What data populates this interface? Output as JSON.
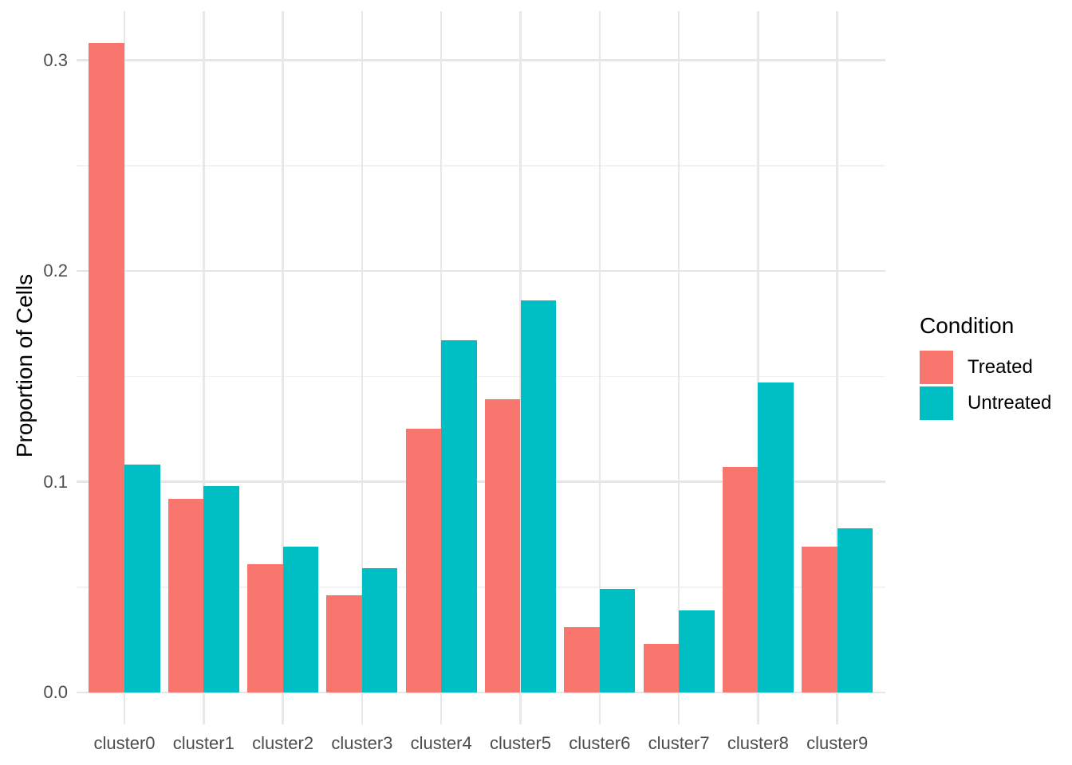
{
  "chart_data": {
    "type": "bar",
    "grouping": "dodged",
    "title": "",
    "xlabel": "",
    "ylabel": "Proportion of Cells",
    "categories": [
      "cluster0",
      "cluster1",
      "cluster2",
      "cluster3",
      "cluster4",
      "cluster5",
      "cluster6",
      "cluster7",
      "cluster8",
      "cluster9"
    ],
    "series": [
      {
        "name": "Treated",
        "color": "#F8766D",
        "values": [
          0.308,
          0.092,
          0.061,
          0.046,
          0.125,
          0.139,
          0.031,
          0.023,
          0.107,
          0.069
        ]
      },
      {
        "name": "Untreated",
        "color": "#00BFC4",
        "values": [
          0.108,
          0.098,
          0.069,
          0.059,
          0.167,
          0.186,
          0.049,
          0.039,
          0.147,
          0.078
        ]
      }
    ],
    "ylim": [
      -0.015,
      0.324
    ],
    "yticks": [
      0.0,
      0.1,
      0.2,
      0.3
    ],
    "ytick_labels": [
      "0.0",
      "0.1",
      "0.2",
      "0.3"
    ],
    "yminor_ticks": [
      0.05,
      0.15,
      0.25
    ],
    "grid": "horizontal major+minor, vertical major at category centers",
    "legend_position": "right",
    "legend_title": "Condition"
  },
  "legend": {
    "title": "Condition",
    "items": [
      {
        "label": "Treated",
        "color": "#F8766D"
      },
      {
        "label": "Untreated",
        "color": "#00BFC4"
      }
    ]
  },
  "colors": {
    "background": "#FFFFFF",
    "major_grid": "#E6E6E6",
    "minor_grid": "#F2F2F2",
    "axis_text": "#4D4D4D",
    "title_text": "#000000"
  }
}
